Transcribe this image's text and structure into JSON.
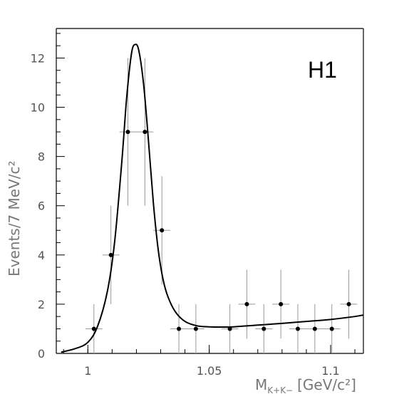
{
  "chart_data": {
    "type": "scatter",
    "label": "H1",
    "xlabel": "M",
    "xlabel_sub": "K+K−",
    "xlabel_unit": "[GeV/c²]",
    "ylabel": "Events/7 MeV/c²",
    "xlim": [
      0.987,
      1.1135
    ],
    "ylim": [
      0,
      13.2
    ],
    "xticks": [
      1,
      1.05,
      1.1
    ],
    "xtick_labels": [
      "1",
      "1.05",
      "1.1"
    ],
    "yticks": [
      0,
      2,
      4,
      6,
      8,
      10,
      12
    ],
    "ytick_labels": [
      "0",
      "2",
      "4",
      "6",
      "8",
      "10",
      "12"
    ],
    "grid": false,
    "series": [
      {
        "kind": "points_with_errors",
        "x": [
          1.0025,
          1.0095,
          1.0165,
          1.0235,
          1.0305,
          1.0375,
          1.0445,
          1.0585,
          1.0655,
          1.0725,
          1.0795,
          1.0865,
          1.0935,
          1.1005,
          1.1075
        ],
        "y": [
          1,
          4,
          9,
          9,
          5,
          1,
          1,
          1,
          2,
          1,
          2,
          1,
          1,
          1,
          2
        ],
        "yerr": [
          1,
          2,
          3,
          3,
          2.2,
          1,
          1,
          1,
          1.4,
          1,
          1.4,
          1,
          1,
          1,
          1.4
        ],
        "xerr": 0.0035
      },
      {
        "kind": "fit_curve",
        "x": [
          0.989,
          0.995,
          1.0,
          1.004,
          1.008,
          1.011,
          1.014,
          1.016,
          1.018,
          1.0195,
          1.021,
          1.023,
          1.025,
          1.027,
          1.029,
          1.031,
          1.033,
          1.036,
          1.04,
          1.045,
          1.05,
          1.055,
          1.06,
          1.07,
          1.08,
          1.09,
          1.1,
          1.11,
          1.1135
        ],
        "y": [
          0.05,
          0.2,
          0.45,
          1.1,
          2.5,
          4.5,
          7.8,
          10.4,
          12.2,
          12.55,
          12.3,
          10.9,
          8.6,
          6.1,
          4.2,
          3.0,
          2.3,
          1.7,
          1.3,
          1.12,
          1.08,
          1.07,
          1.08,
          1.15,
          1.22,
          1.3,
          1.38,
          1.5,
          1.56
        ]
      }
    ]
  }
}
